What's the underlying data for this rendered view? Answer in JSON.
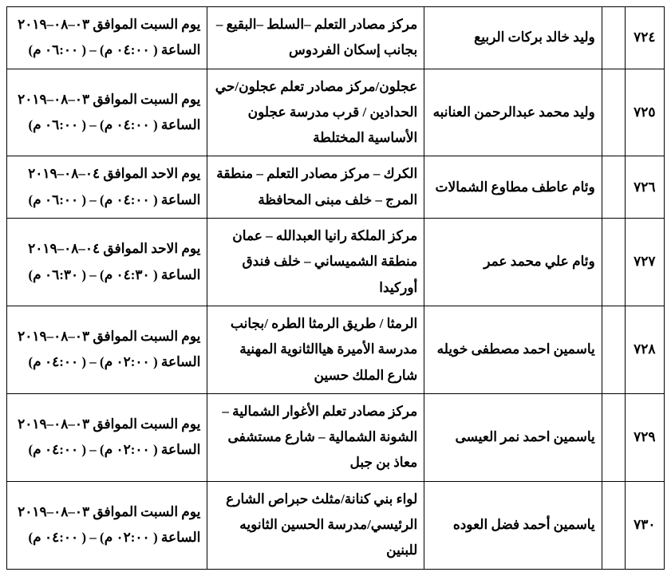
{
  "style": {
    "background_color": "#ffffff",
    "border_color": "#000000",
    "text_color": "#000000",
    "font_family": "Traditional Arabic, Simplified Arabic, Times New Roman, serif",
    "font_size_pt": 13,
    "font_weight": "bold",
    "line_height": 1.9,
    "columns": [
      {
        "key": "num",
        "width_pct": 6,
        "align": "center"
      },
      {
        "key": "empty",
        "width_pct": 3.5,
        "align": "right"
      },
      {
        "key": "name",
        "width_pct": 27,
        "align": "right"
      },
      {
        "key": "loc",
        "width_pct": 33,
        "align": "right"
      },
      {
        "key": "date",
        "width_pct": 30.5,
        "align": "right"
      }
    ]
  },
  "rows": [
    {
      "num": "٧٢٤",
      "empty": "",
      "name": "وليد خالد بركات الربيع",
      "loc": "مركز مصادر التعلم –السلط –البقيع –بجانب إسكان الفردوس",
      "date": "يوم السبت الموافق ٠٣–٠٨–٢٠١٩ الساعة ( ٠٤:٠٠ م) – ( ٠٦:٠٠ م)"
    },
    {
      "num": "٧٢٥",
      "empty": "",
      "name": "وليد محمد عبدالرحمن العنانبه",
      "loc": "عجلون/مركز مصادر تعلم عجلون/حي الحدادين / قرب مدرسة عجلون الأساسية المختلطة",
      "date": "يوم السبت الموافق ٠٣–٠٨–٢٠١٩ الساعة ( ٠٤:٠٠ م) – ( ٠٦:٠٠ م)"
    },
    {
      "num": "٧٢٦",
      "empty": "",
      "name": "وئام عاطف مطاوع الشمالات",
      "loc": "الكرك – مركز مصادر التعلم – منطقة المرج – خلف مبنى المحافظة",
      "date": "يوم الاحد الموافق ٠٤–٠٨–٢٠١٩ الساعة ( ٠٤:٠٠ م) – ( ٠٦:٠٠ م)"
    },
    {
      "num": "٧٢٧",
      "empty": "",
      "name": "وئام علي محمد عمر",
      "loc": "مركز الملكة رانيا العبدالله – عمان منطقة الشميساني – خلف فندق أوركيدا",
      "date": "يوم الاحد الموافق ٠٤–٠٨–٢٠١٩ الساعة ( ٠٤:٣٠ م) – ( ٠٦:٣٠ م)"
    },
    {
      "num": "٧٢٨",
      "empty": "",
      "name": "ياسمين احمد مصطفى خويله",
      "loc": "الرمثا / طريق الرمثا الطره /بجانب  مدرسة الأميرة هياالثانوية المهنية شارع الملك حسين",
      "date": "يوم السبت الموافق ٠٣–٠٨–٢٠١٩ الساعة ( ٠٢:٠٠ م) – ( ٠٤:٠٠ م)"
    },
    {
      "num": "٧٢٩",
      "empty": "",
      "name": "ياسمين احمد نمر العيسى",
      "loc": "مركز مصادر تعلم الأغوار الشمالية  – الشونة الشمالية – شارع مستشفى معاذ بن جبل",
      "date": "يوم السبت الموافق ٠٣–٠٨–٢٠١٩ الساعة ( ٠٢:٠٠ م) – ( ٠٤:٠٠ م)"
    },
    {
      "num": "٧٣٠",
      "empty": "",
      "name": "ياسمين أحمد فضل العوده",
      "loc": "لواء بني كنانة/مثلث حبراص الشارع الرئيسي/مدرسة الحسين الثانويه للبنين",
      "date": "يوم السبت الموافق ٠٣–٠٨–٢٠١٩ الساعة ( ٠٢:٠٠ م) – ( ٠٤:٠٠ م)"
    }
  ]
}
